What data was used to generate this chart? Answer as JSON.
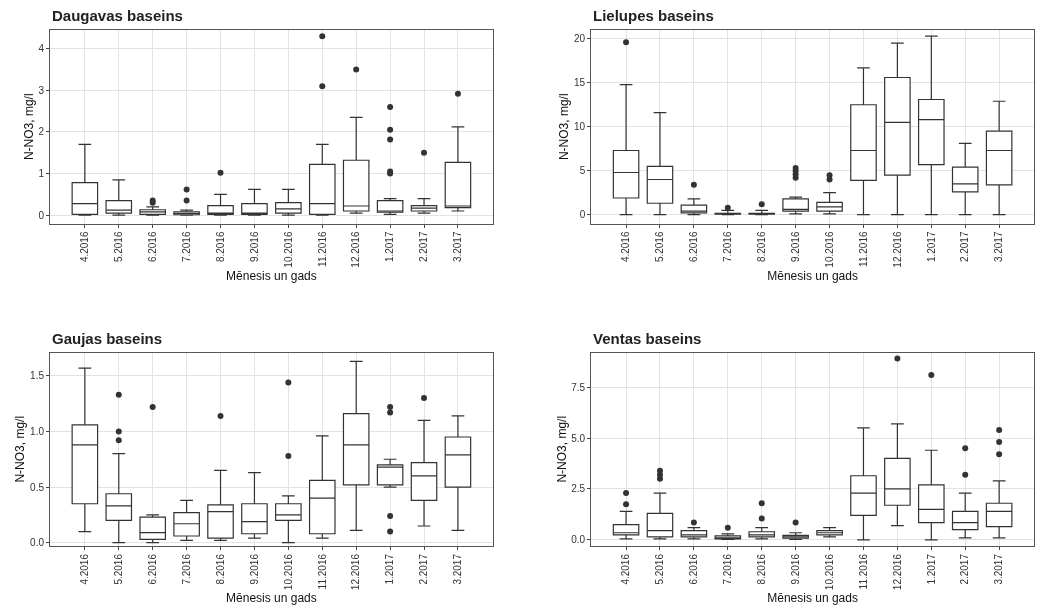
{
  "chart_data": [
    {
      "type": "box",
      "title": "Daugavas baseins",
      "xlabel": "Mēnesis un gads",
      "ylabel": "N-NO3, mg/l",
      "grid": true,
      "ylim": [
        -0.2,
        4.45
      ],
      "yticks": [
        0,
        1,
        2,
        3,
        4
      ],
      "categories": [
        "4.2016",
        "5.2016",
        "6.2016",
        "7.2016",
        "8.2016",
        "9.2016",
        "10.2016",
        "11.2016",
        "12.2016",
        "1.2017",
        "2.2017",
        "3.2017"
      ],
      "boxes": [
        {
          "low": 0,
          "q1": 0.02,
          "median": 0.28,
          "q3": 0.78,
          "high": 1.7
        },
        {
          "low": 0,
          "q1": 0.05,
          "median": 0.12,
          "q3": 0.35,
          "high": 0.85
        },
        {
          "low": 0,
          "q1": 0.02,
          "median": 0.08,
          "q3": 0.13,
          "high": 0.2,
          "outliers": [
            0.3,
            0.35
          ]
        },
        {
          "low": 0,
          "q1": 0.01,
          "median": 0.04,
          "q3": 0.08,
          "high": 0.12,
          "outliers": [
            0.35,
            0.62
          ]
        },
        {
          "low": 0,
          "q1": 0.02,
          "median": 0.05,
          "q3": 0.23,
          "high": 0.5,
          "outliers": [
            1.02
          ]
        },
        {
          "low": 0,
          "q1": 0.02,
          "median": 0.05,
          "q3": 0.28,
          "high": 0.62
        },
        {
          "low": 0,
          "q1": 0.05,
          "median": 0.15,
          "q3": 0.3,
          "high": 0.62
        },
        {
          "low": 0,
          "q1": 0.02,
          "median": 0.28,
          "q3": 1.22,
          "high": 1.7,
          "outliers": [
            3.1,
            4.3
          ]
        },
        {
          "low": 0.05,
          "q1": 0.1,
          "median": 0.22,
          "q3": 1.32,
          "high": 2.35,
          "outliers": [
            3.5
          ]
        },
        {
          "low": 0.02,
          "q1": 0.07,
          "median": 0.1,
          "q3": 0.35,
          "high": 0.4,
          "outliers": [
            1.0,
            1.05,
            1.82,
            2.05,
            2.6
          ]
        },
        {
          "low": 0.05,
          "q1": 0.1,
          "median": 0.17,
          "q3": 0.23,
          "high": 0.4,
          "outliers": [
            1.5
          ]
        },
        {
          "low": 0.1,
          "q1": 0.18,
          "median": 0.22,
          "q3": 1.27,
          "high": 2.12,
          "outliers": [
            2.92
          ]
        }
      ]
    },
    {
      "type": "box",
      "title": "Lielupes baseins",
      "xlabel": "Mēnesis un gads",
      "ylabel": "N-NO3, mg/l",
      "grid": true,
      "ylim": [
        -1,
        21
      ],
      "yticks": [
        0,
        5,
        10,
        15,
        20
      ],
      "categories": [
        "4.2016",
        "5.2016",
        "6.2016",
        "7.2016",
        "8.2016",
        "9.2016",
        "10.2016",
        "11.2016",
        "12.2016",
        "1.2017",
        "2.2017",
        "3.2017"
      ],
      "boxes": [
        {
          "low": 0,
          "q1": 1.9,
          "median": 4.8,
          "q3": 7.3,
          "high": 14.8,
          "outliers": [
            19.6
          ]
        },
        {
          "low": 0,
          "q1": 1.3,
          "median": 4.0,
          "q3": 5.5,
          "high": 11.6
        },
        {
          "low": 0,
          "q1": 0.2,
          "median": 0.4,
          "q3": 1.1,
          "high": 1.8,
          "outliers": [
            3.4
          ]
        },
        {
          "low": 0,
          "q1": 0.05,
          "median": 0.1,
          "q3": 0.15,
          "high": 0.5,
          "outliers": [
            0.8
          ]
        },
        {
          "low": 0,
          "q1": 0.05,
          "median": 0.1,
          "q3": 0.15,
          "high": 0.5,
          "outliers": [
            1.2
          ]
        },
        {
          "low": 0.1,
          "q1": 0.4,
          "median": 0.6,
          "q3": 1.8,
          "high": 2.0,
          "outliers": [
            4.2,
            4.6,
            5.0,
            5.3
          ]
        },
        {
          "low": 0.1,
          "q1": 0.4,
          "median": 0.9,
          "q3": 1.4,
          "high": 2.5,
          "outliers": [
            4.0,
            4.5
          ]
        },
        {
          "low": 0,
          "q1": 3.9,
          "median": 7.3,
          "q3": 12.5,
          "high": 16.7
        },
        {
          "low": 0,
          "q1": 4.5,
          "median": 10.5,
          "q3": 15.6,
          "high": 19.5
        },
        {
          "low": 0,
          "q1": 5.7,
          "median": 10.8,
          "q3": 13.1,
          "high": 20.3
        },
        {
          "low": 0,
          "q1": 2.6,
          "median": 3.5,
          "q3": 5.4,
          "high": 8.1
        },
        {
          "low": 0,
          "q1": 3.4,
          "median": 7.3,
          "q3": 9.5,
          "high": 12.9
        }
      ]
    },
    {
      "type": "box",
      "title": "Gaujas baseins",
      "xlabel": "Mēnesis un gads",
      "ylabel": "N-NO3, mg/l",
      "grid": true,
      "ylim": [
        -0.03,
        1.71
      ],
      "yticks": [
        {
          "value": 0,
          "label": "0.0"
        },
        0.5,
        {
          "value": 1,
          "label": "1.0"
        },
        1.5
      ],
      "categories": [
        "4.2016",
        "5.2016",
        "6.2016",
        "7.2016",
        "8.2016",
        "9.2016",
        "10.2016",
        "11.2016",
        "12.2016",
        "1.2017",
        "2.2017",
        "3.2017"
      ],
      "boxes": [
        {
          "low": 0.1,
          "q1": 0.35,
          "median": 0.88,
          "q3": 1.06,
          "high": 1.57
        },
        {
          "low": 0.0,
          "q1": 0.2,
          "median": 0.33,
          "q3": 0.44,
          "high": 0.8,
          "outliers": [
            0.92,
            1.0,
            1.33
          ]
        },
        {
          "low": 0.0,
          "q1": 0.03,
          "median": 0.09,
          "q3": 0.23,
          "high": 0.25,
          "outliers": [
            1.22
          ]
        },
        {
          "low": 0.02,
          "q1": 0.06,
          "median": 0.17,
          "q3": 0.27,
          "high": 0.38
        },
        {
          "low": 0.02,
          "q1": 0.04,
          "median": 0.28,
          "q3": 0.34,
          "high": 0.65,
          "outliers": [
            1.14
          ]
        },
        {
          "low": 0.04,
          "q1": 0.08,
          "median": 0.19,
          "q3": 0.35,
          "high": 0.63
        },
        {
          "low": 0.0,
          "q1": 0.2,
          "median": 0.25,
          "q3": 0.35,
          "high": 0.42,
          "outliers": [
            0.78,
            1.44
          ]
        },
        {
          "low": 0.04,
          "q1": 0.08,
          "median": 0.4,
          "q3": 0.56,
          "high": 0.96
        },
        {
          "low": 0.11,
          "q1": 0.52,
          "median": 0.88,
          "q3": 1.16,
          "high": 1.63
        },
        {
          "low": 0.5,
          "q1": 0.52,
          "median": 0.68,
          "q3": 0.7,
          "high": 0.75,
          "outliers": [
            0.1,
            0.24,
            1.17,
            1.22
          ]
        },
        {
          "low": 0.15,
          "q1": 0.38,
          "median": 0.6,
          "q3": 0.72,
          "high": 1.1,
          "outliers": [
            1.3
          ]
        },
        {
          "low": 0.11,
          "q1": 0.5,
          "median": 0.79,
          "q3": 0.95,
          "high": 1.14
        }
      ]
    },
    {
      "type": "box",
      "title": "Ventas baseins",
      "xlabel": "Mēnesis un gads",
      "ylabel": "N-NO3, mg/l",
      "grid": true,
      "ylim": [
        -0.3,
        9.2
      ],
      "yticks": [
        {
          "value": 0,
          "label": "0.0"
        },
        2.5,
        {
          "value": 5,
          "label": "5.0"
        },
        7.5
      ],
      "categories": [
        "4.2016",
        "5.2016",
        "6.2016",
        "7.2016",
        "8.2016",
        "9.2016",
        "10.2016",
        "11.2016",
        "12.2016",
        "1.2017",
        "2.2017",
        "3.2017"
      ],
      "boxes": [
        {
          "low": 0.05,
          "q1": 0.25,
          "median": 0.35,
          "q3": 0.75,
          "high": 1.4,
          "outliers": [
            1.75,
            2.3
          ]
        },
        {
          "low": 0.05,
          "q1": 0.15,
          "median": 0.45,
          "q3": 1.3,
          "high": 2.3,
          "outliers": [
            3.0,
            3.2,
            3.4
          ]
        },
        {
          "low": 0.05,
          "q1": 0.15,
          "median": 0.25,
          "q3": 0.45,
          "high": 0.6,
          "outliers": [
            0.85
          ]
        },
        {
          "low": 0.02,
          "q1": 0.05,
          "median": 0.1,
          "q3": 0.2,
          "high": 0.3,
          "outliers": [
            0.6
          ]
        },
        {
          "low": 0.05,
          "q1": 0.15,
          "median": 0.25,
          "q3": 0.4,
          "high": 0.6,
          "outliers": [
            1.05,
            1.8
          ]
        },
        {
          "low": 0.02,
          "q1": 0.08,
          "median": 0.15,
          "q3": 0.22,
          "high": 0.35,
          "outliers": [
            0.85
          ]
        },
        {
          "low": 0.15,
          "q1": 0.25,
          "median": 0.35,
          "q3": 0.45,
          "high": 0.6
        },
        {
          "low": 0,
          "q1": 1.2,
          "median": 2.3,
          "q3": 3.15,
          "high": 5.5
        },
        {
          "low": 0.7,
          "q1": 1.7,
          "median": 2.5,
          "q3": 4.0,
          "high": 5.7,
          "outliers": [
            8.9
          ]
        },
        {
          "low": 0,
          "q1": 0.85,
          "median": 1.5,
          "q3": 2.7,
          "high": 4.4,
          "outliers": [
            8.1
          ]
        },
        {
          "low": 0.1,
          "q1": 0.5,
          "median": 0.85,
          "q3": 1.4,
          "high": 2.3,
          "outliers": [
            3.2,
            4.5
          ]
        },
        {
          "low": 0.1,
          "q1": 0.65,
          "median": 1.4,
          "q3": 1.8,
          "high": 2.9,
          "outliers": [
            4.2,
            4.8,
            5.4
          ]
        }
      ]
    }
  ]
}
